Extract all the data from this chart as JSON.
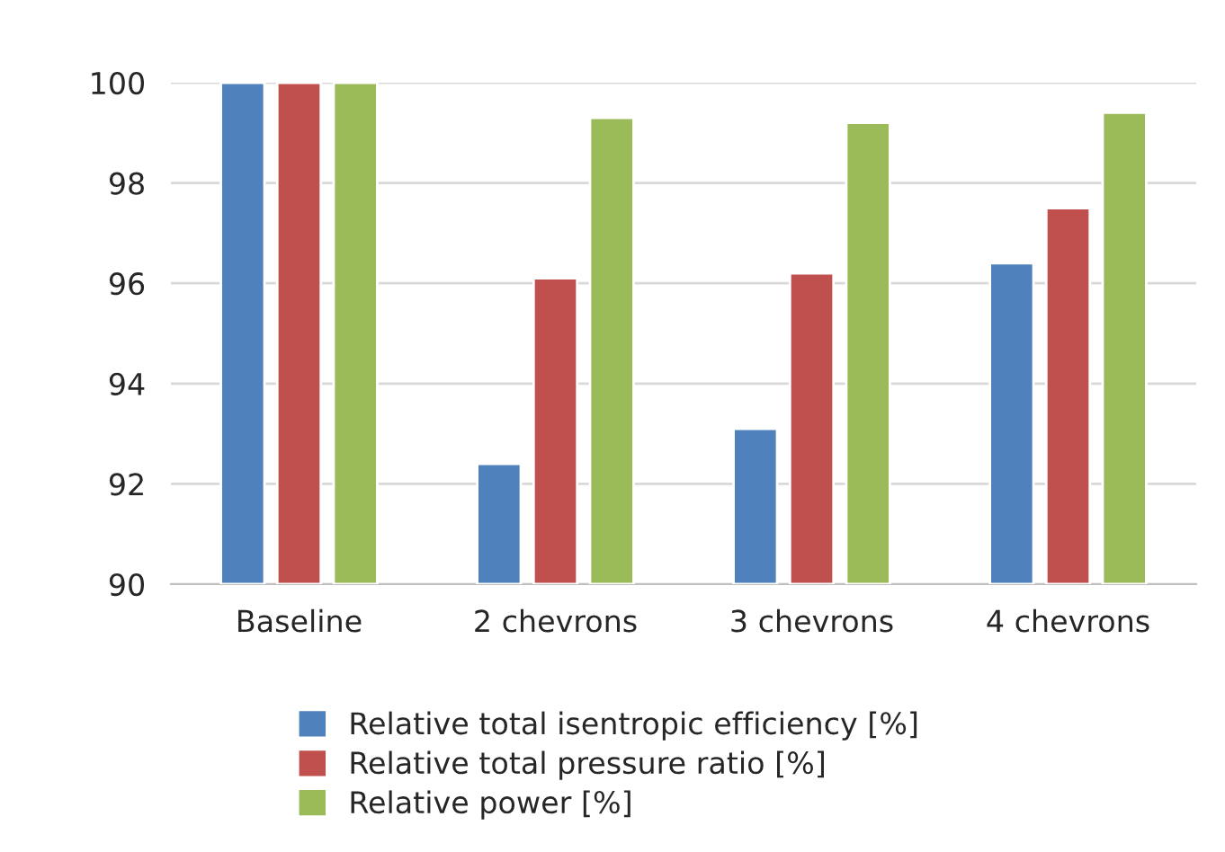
{
  "chart_data": {
    "type": "bar",
    "categories": [
      "Baseline",
      "2 chevrons",
      "3 chevrons",
      "4 chevrons"
    ],
    "series": [
      {
        "name": "Relative total isentropic efficiency [%]",
        "color": "#4f81bd",
        "values": [
          100,
          92.4,
          93.1,
          96.4
        ]
      },
      {
        "name": "Relative total pressure ratio [%]",
        "color": "#c0504d",
        "values": [
          100,
          96.1,
          96.2,
          97.5
        ]
      },
      {
        "name": "Relative power [%]",
        "color": "#9bbb59",
        "values": [
          100,
          99.3,
          99.2,
          99.4
        ]
      }
    ],
    "ylim": [
      90,
      100
    ],
    "yticks": [
      90,
      92,
      94,
      96,
      98,
      100
    ],
    "grid": "y",
    "legend": "bottom"
  }
}
